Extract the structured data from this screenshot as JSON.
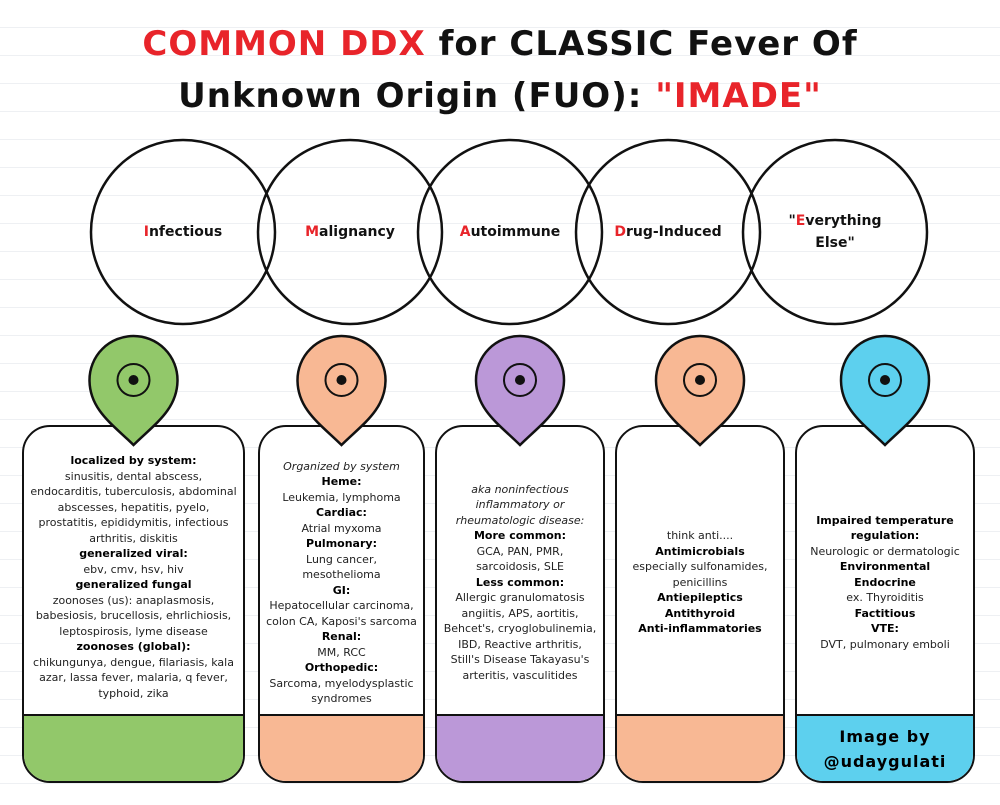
{
  "title": {
    "part1": "COMMON DDX",
    "part2": "for CLASSIC Fever Of Unknown Origin (FUO):",
    "part3": "\"IMADE\""
  },
  "circles": [
    {
      "initial": "I",
      "rest": "nfectious"
    },
    {
      "initial": "M",
      "rest": "alignancy"
    },
    {
      "initial": "A",
      "rest": "utoimmune"
    },
    {
      "initial": "D",
      "rest": "rug-Induced"
    },
    {
      "before": "\"",
      "initial": "E",
      "rest": "verything Else\""
    }
  ],
  "columns": [
    {
      "color": "#92c86a",
      "align": "top",
      "lines": [
        {
          "text": "localized by system:",
          "style": "bold"
        },
        {
          "text": "sinusitis, dental abscess, endocarditis, tuberculosis, abdominal abscesses, hepatitis, pyelo, prostatitis, epididymitis, infectious arthritis, diskitis"
        },
        {
          "text": "generalized viral:",
          "style": "bold"
        },
        {
          "text": "ebv, cmv, hsv, hiv"
        },
        {
          "text": "generalized fungal",
          "style": "bold"
        },
        {
          "text": "zoonoses (us): anaplasmosis, babesiosis, brucellosis, ehrlichiosis, leptospirosis, lyme disease"
        },
        {
          "text": "zoonoses (global):",
          "style": "bold"
        },
        {
          "text": "chikungunya, dengue, filariasis, kala azar, lassa fever, malaria, q fever, typhoid, zika"
        }
      ]
    },
    {
      "color": "#f8b894",
      "align": "center",
      "lines": [
        {
          "text": "Organized by system",
          "style": "italic"
        },
        {
          "text": "Heme:",
          "style": "bold"
        },
        {
          "text": "Leukemia, lymphoma"
        },
        {
          "text": "Cardiac:",
          "style": "bold"
        },
        {
          "text": "Atrial myxoma"
        },
        {
          "text": "Pulmonary:",
          "style": "bold"
        },
        {
          "text": "Lung cancer, mesothelioma"
        },
        {
          "text": "GI:",
          "style": "bold"
        },
        {
          "text": "Hepatocellular carcinoma, colon CA, Kaposi's sarcoma"
        },
        {
          "text": "Renal:",
          "style": "bold"
        },
        {
          "text": "MM, RCC"
        },
        {
          "text": "Orthopedic:",
          "style": "bold"
        },
        {
          "text": "Sarcoma, myelodysplastic syndromes"
        }
      ]
    },
    {
      "color": "#bb98d8",
      "align": "center",
      "lines": [
        {
          "text": "aka noninfectious inflammatory or rheumatologic disease:",
          "style": "italic"
        },
        {
          "text": "More common:",
          "style": "bold"
        },
        {
          "text": "GCA, PAN, PMR, sarcoidosis, SLE"
        },
        {
          "text": "Less common:",
          "style": "bold"
        },
        {
          "text": "Allergic granulomatosis angiitis, APS, aortitis, Behcet's, cryoglobulinemia, IBD, Reactive arthritis, Still's Disease Takayasu's arteritis, vasculitides"
        }
      ]
    },
    {
      "color": "#f8b894",
      "align": "center",
      "lines": [
        {
          "text": "think anti...."
        },
        {
          "text": "Antimicrobials",
          "style": "bold"
        },
        {
          "text": "especially sulfonamides, penicillins"
        },
        {
          "text": "Antiepileptics",
          "style": "bold"
        },
        {
          "text": "Antithyroid",
          "style": "bold"
        },
        {
          "text": "Anti-inflammatories",
          "style": "bold"
        }
      ]
    },
    {
      "color": "#5dd0ee",
      "align": "center",
      "lines": [
        {
          "text": "Impaired temperature regulation:",
          "style": "bold"
        },
        {
          "text": "Neurologic or dermatologic"
        },
        {
          "text": "Environmental",
          "style": "bold"
        },
        {
          "text": "Endocrine",
          "style": "bold"
        },
        {
          "text": "ex. Thyroiditis"
        },
        {
          "text": "Factitious",
          "style": "bold"
        },
        {
          "text": "VTE:",
          "style": "bold"
        },
        {
          "text": "DVT, pulmonary emboli"
        }
      ],
      "footer": [
        "Image by",
        "@udaygulati"
      ]
    }
  ]
}
